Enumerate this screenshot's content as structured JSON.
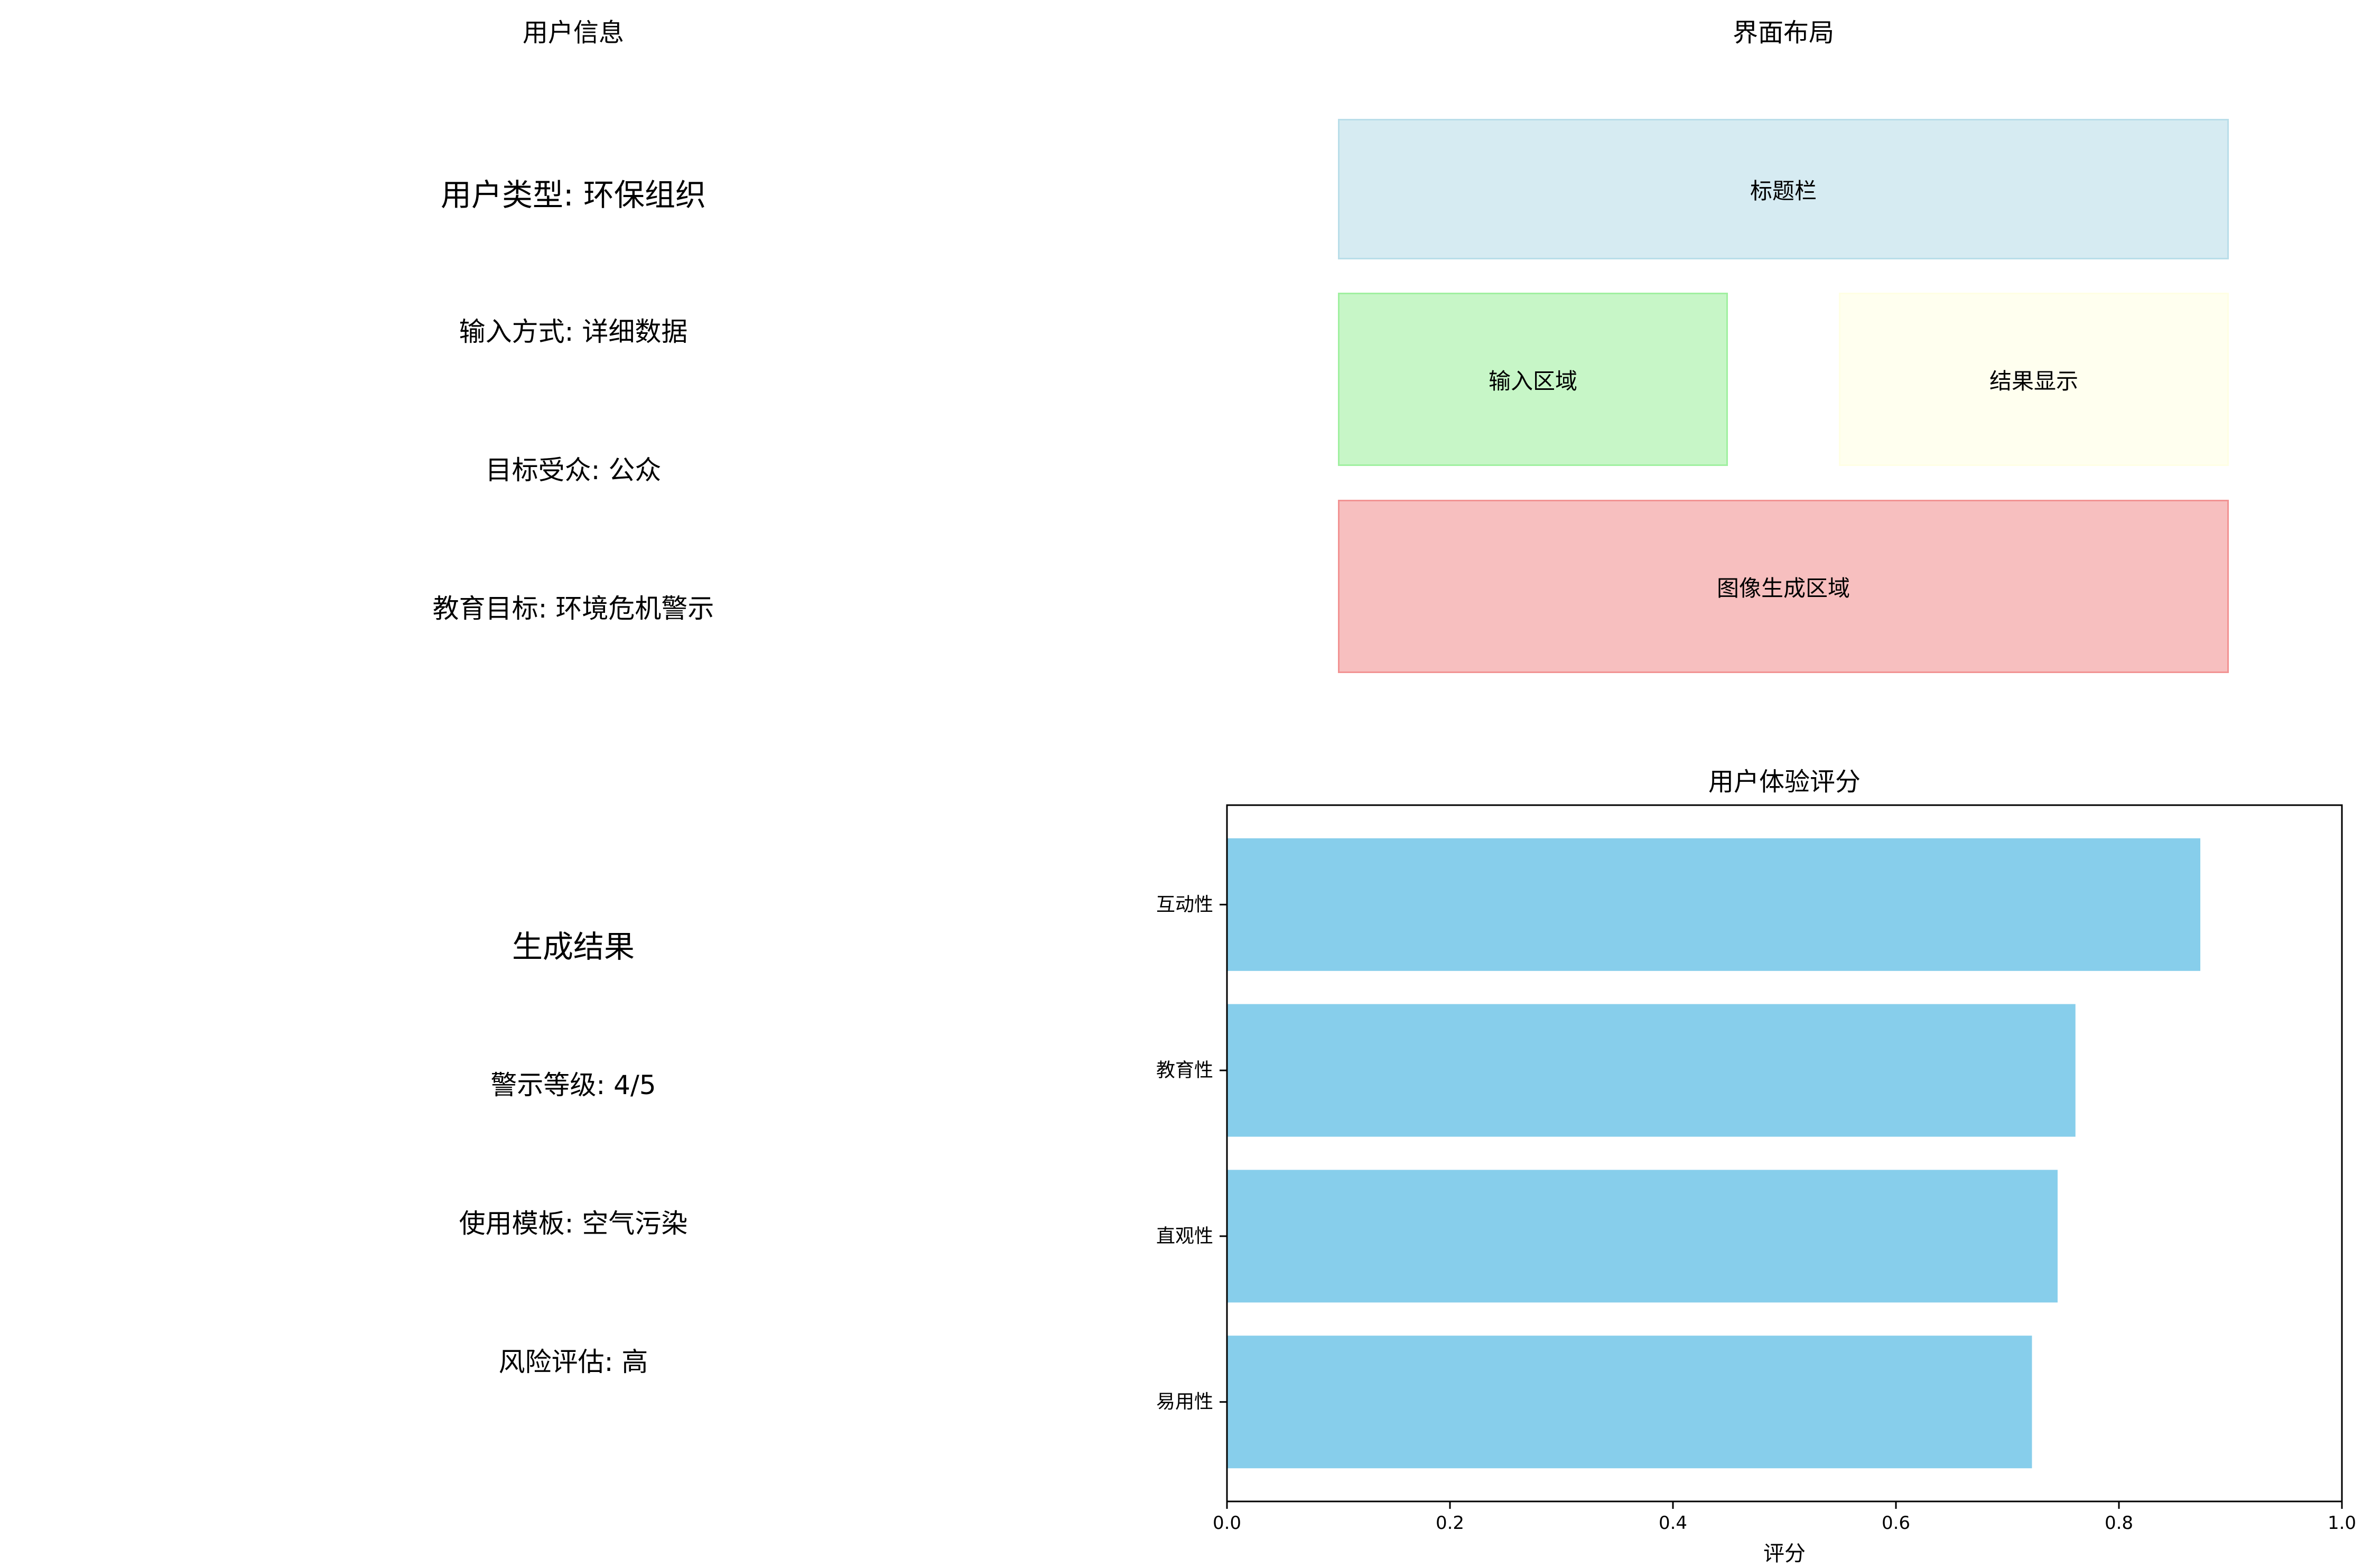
{
  "user_info": {
    "title": "用户信息",
    "user_type": "用户类型: 环保组织",
    "input_method": "输入方式: 详细数据",
    "target_audience": "目标受众: 公众",
    "edu_goal": "教育目标: 环境危机警示"
  },
  "layout_panel": {
    "title": "界面布局",
    "blocks": {
      "title_bar": {
        "label": "标题栏",
        "fill": "#add8e6",
        "edge": "#add8e6"
      },
      "input_area": {
        "label": "输入区域",
        "fill": "#90ee90",
        "edge": "#90ee90"
      },
      "result_display": {
        "label": "结果显示",
        "fill": "#ffffe0",
        "edge": "#ffffe0"
      },
      "image_area": {
        "label": "图像生成区域",
        "fill": "#f08080",
        "edge": "#f08080"
      }
    }
  },
  "result_info": {
    "title": "生成结果",
    "warning_level": "警示等级: 4/5",
    "template": "使用模板: 空气污染",
    "risk": "风险评估: 高"
  },
  "chart_data": {
    "type": "bar",
    "orientation": "horizontal",
    "title": "用户体验评分",
    "xlabel": "评分",
    "ylabel": "",
    "categories": [
      "易用性",
      "直观性",
      "教育性",
      "互动性"
    ],
    "values": [
      0.722,
      0.745,
      0.761,
      0.873
    ],
    "xlim": [
      0,
      1.0
    ],
    "xticks": [
      "0.0",
      "0.2",
      "0.4",
      "0.6",
      "0.8",
      "1.0"
    ],
    "bar_color": "#87ceeb",
    "grid": false
  }
}
